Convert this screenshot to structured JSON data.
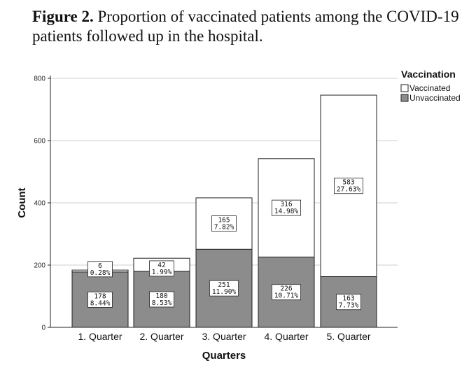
{
  "caption": {
    "bold": "Figure 2.",
    "text": " Proportion of vaccinated patients among the COVID-19 patients followed up in the hospital."
  },
  "colors": {
    "vaccinated": "#ffffff",
    "unvaccinated": "#8c8c8c",
    "grid": "#cfcfcf",
    "stroke": "#222222"
  },
  "chart_data": {
    "type": "bar",
    "stacked": true,
    "categories": [
      "1. Quarter",
      "2. Quarter",
      "3. Quarter",
      "4. Quarter",
      "5. Quarter"
    ],
    "series": [
      {
        "name": "Unvaccinated",
        "values": [
          178,
          180,
          251,
          226,
          163
        ],
        "percents": [
          "8.44%",
          "8.53%",
          "11.90%",
          "10.71%",
          "7.73%"
        ]
      },
      {
        "name": "Vaccinated",
        "values": [
          6,
          42,
          165,
          316,
          583
        ],
        "percents": [
          "0.28%",
          "1.99%",
          "7.82%",
          "14.98%",
          "27.63%"
        ]
      }
    ],
    "xlabel": "Quarters",
    "ylabel": "Count",
    "ylim": [
      0,
      800
    ],
    "yticks": [
      0,
      200,
      400,
      600,
      800
    ],
    "grid": true,
    "legend": {
      "title": "Vaccination",
      "position": "top-right",
      "entries": [
        "Vaccinated",
        "Unvaccinated"
      ]
    }
  }
}
